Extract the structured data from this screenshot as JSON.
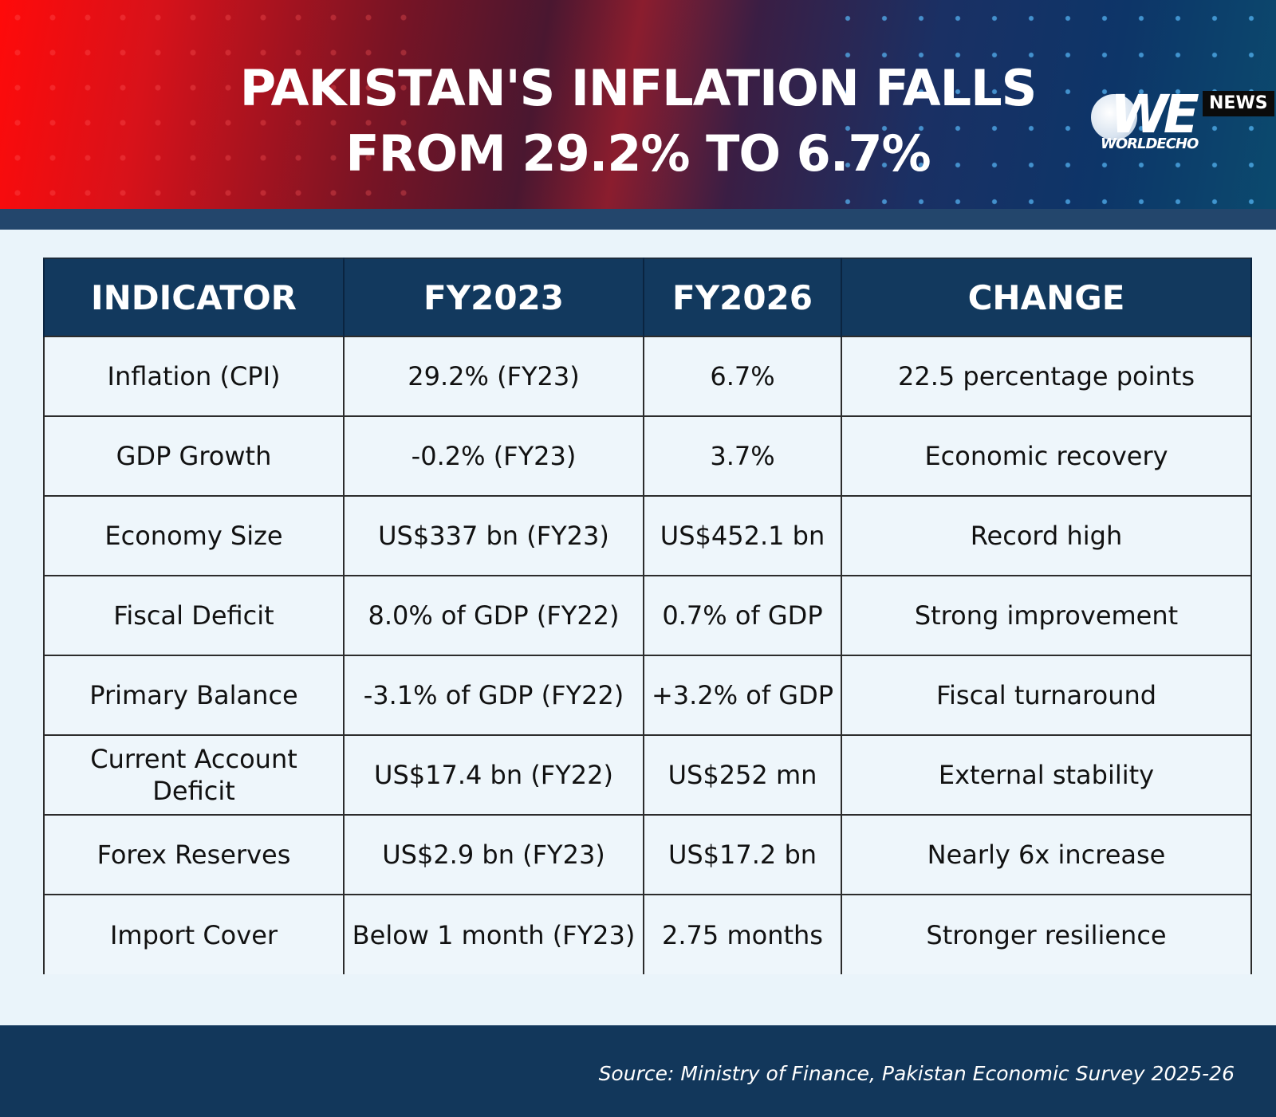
{
  "header": {
    "title_line1": "PAKISTAN'S INFLATION FALLS",
    "title_line2": "FROM 29.2% TO 6.7%",
    "logo": {
      "mark": "WE",
      "tag": "NEWS",
      "name": "WORLDECHO"
    },
    "colors": {
      "left": "#ff0a0a",
      "right": "#0d3568",
      "band": "#23466c"
    }
  },
  "table": {
    "headers": [
      "INDICATOR",
      "FY2023",
      "FY2026",
      "CHANGE"
    ],
    "header_color": "#12395e",
    "rows": [
      [
        "Inflation (CPI)",
        "29.2% (FY23)",
        "6.7%",
        "22.5 percentage points"
      ],
      [
        "GDP Growth",
        "-0.2% (FY23)",
        "3.7%",
        "Economic recovery"
      ],
      [
        "Economy Size",
        "US$337 bn (FY23)",
        "US$452.1 bn",
        "Record high"
      ],
      [
        "Fiscal Deficit",
        "8.0% of GDP (FY22)",
        "0.7% of GDP",
        "Strong improvement"
      ],
      [
        "Primary Balance",
        "-3.1% of GDP (FY22)",
        "+3.2% of GDP",
        "Fiscal turnaround"
      ],
      [
        "Current Account Deficit",
        "US$17.4 bn (FY22)",
        "US$252 mn",
        "External stability"
      ],
      [
        "Forex Reserves",
        "US$2.9 bn (FY23)",
        "US$17.2 bn",
        "Nearly 6x increase"
      ],
      [
        "Import Cover",
        "Below 1 month (FY23)",
        "2.75 months",
        "Stronger resilience"
      ]
    ]
  },
  "footer": {
    "source": "Source: Ministry of Finance, Pakistan Economic Survey 2025-26",
    "color": "#12375b"
  }
}
